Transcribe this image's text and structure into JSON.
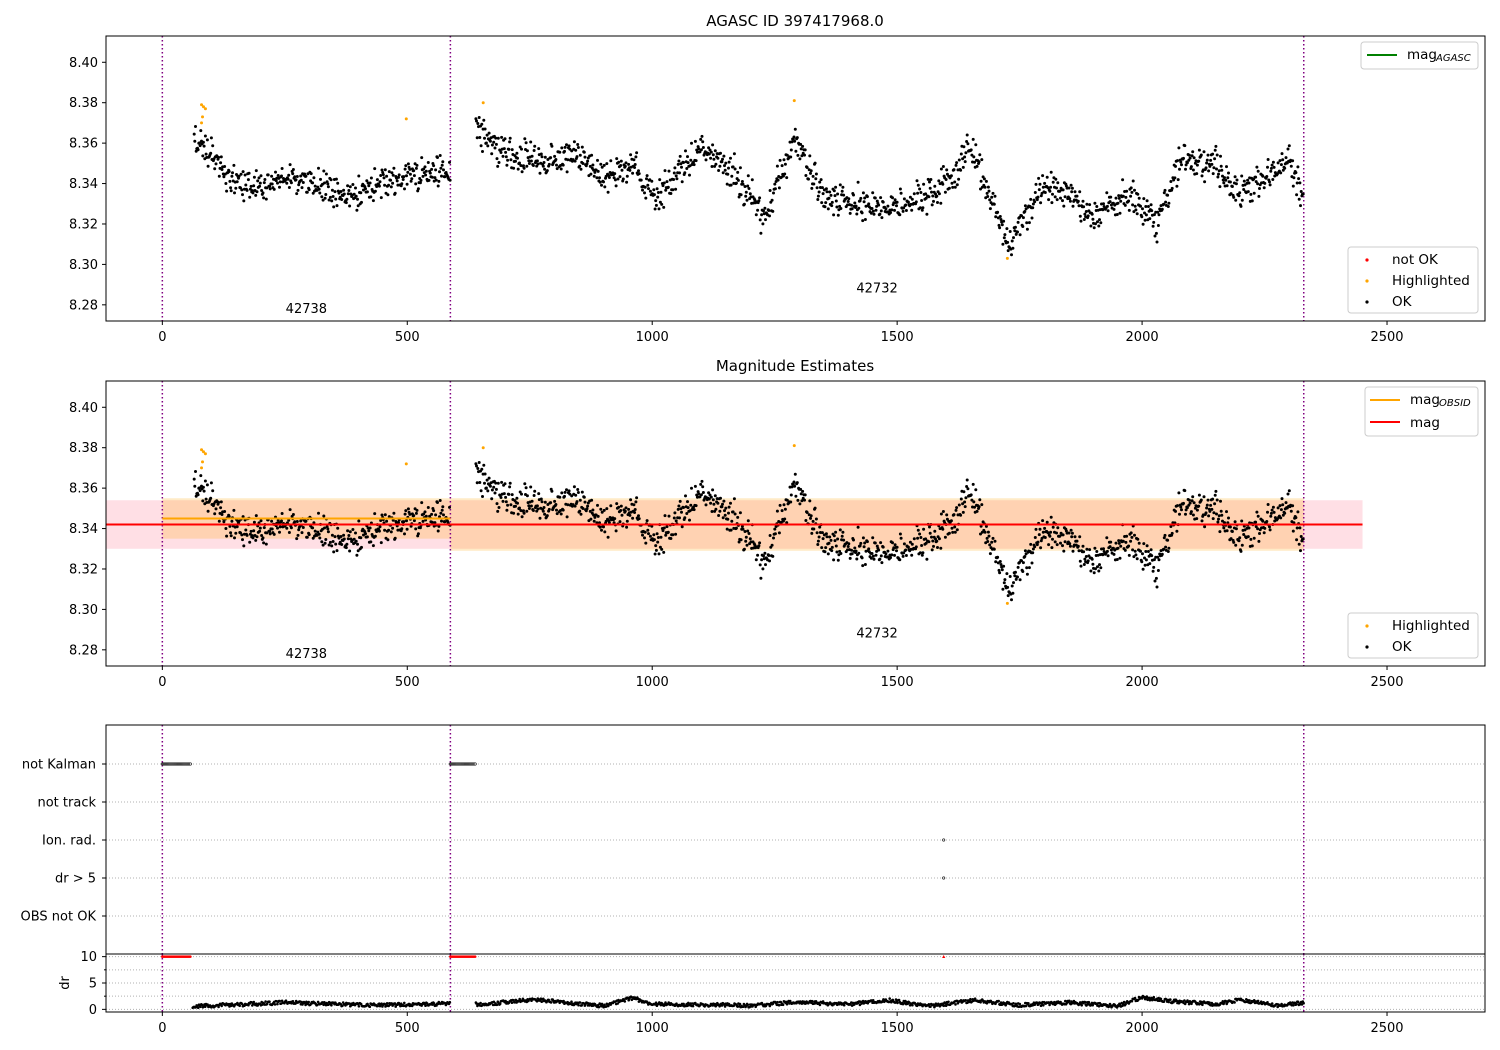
{
  "chart_data": [
    {
      "type": "scatter",
      "title": "AGASC ID 397417968.0",
      "xlabel": "",
      "ylabel": "",
      "xlim": [
        -115,
        2700
      ],
      "ylim": [
        8.272,
        8.413
      ],
      "x_ticks": [
        "0",
        "500",
        "1000",
        "1500",
        "2000",
        "2500"
      ],
      "y_ticks": [
        "8.28",
        "8.30",
        "8.32",
        "8.34",
        "8.36",
        "8.38",
        "8.40"
      ],
      "y_tick_values": [
        8.28,
        8.3,
        8.32,
        8.34,
        8.36,
        8.38,
        8.4
      ],
      "obs_boundaries": [
        0,
        588,
        2330
      ],
      "obsids": [
        {
          "label": "42738",
          "x": 294,
          "y": 8.278
        },
        {
          "label": "42732",
          "x": 1459,
          "y": 8.288
        }
      ],
      "legend_lines": [
        {
          "name": "mag",
          "sub": "AGASC",
          "color": "#008000"
        }
      ],
      "legend_points": [
        {
          "name": "not OK",
          "color": "#ff0000"
        },
        {
          "name": "Highlighted",
          "color": "#ffa500"
        },
        {
          "name": "OK",
          "color": "#000000"
        }
      ],
      "highlighted_points": [
        [
          80,
          8.379
        ],
        [
          84,
          8.378
        ],
        [
          88,
          8.377
        ],
        [
          82,
          8.373
        ],
        [
          80,
          8.37
        ],
        [
          498,
          8.372
        ],
        [
          655,
          8.38
        ],
        [
          1290,
          8.381
        ],
        [
          1725,
          8.303
        ]
      ],
      "ok_series_profile": [
        [
          65,
          8.362
        ],
        [
          100,
          8.355
        ],
        [
          130,
          8.343
        ],
        [
          200,
          8.338
        ],
        [
          260,
          8.344
        ],
        [
          320,
          8.34
        ],
        [
          380,
          8.333
        ],
        [
          430,
          8.338
        ],
        [
          500,
          8.345
        ],
        [
          588,
          8.345
        ],
        [
          640,
          8.368
        ],
        [
          700,
          8.354
        ],
        [
          780,
          8.351
        ],
        [
          840,
          8.356
        ],
        [
          900,
          8.342
        ],
        [
          960,
          8.349
        ],
        [
          1010,
          8.333
        ],
        [
          1100,
          8.357
        ],
        [
          1170,
          8.345
        ],
        [
          1230,
          8.322
        ],
        [
          1290,
          8.362
        ],
        [
          1350,
          8.333
        ],
        [
          1450,
          8.329
        ],
        [
          1520,
          8.329
        ],
        [
          1600,
          8.339
        ],
        [
          1650,
          8.358
        ],
        [
          1700,
          8.327
        ],
        [
          1730,
          8.31
        ],
        [
          1800,
          8.34
        ],
        [
          1850,
          8.335
        ],
        [
          1900,
          8.324
        ],
        [
          1980,
          8.334
        ],
        [
          2030,
          8.32
        ],
        [
          2080,
          8.352
        ],
        [
          2150,
          8.35
        ],
        [
          2200,
          8.335
        ],
        [
          2250,
          8.343
        ],
        [
          2300,
          8.351
        ],
        [
          2330,
          8.332
        ]
      ]
    },
    {
      "type": "scatter",
      "title": "Magnitude Estimates",
      "xlabel": "",
      "ylabel": "",
      "xlim": [
        -115,
        2700
      ],
      "ylim": [
        8.272,
        8.413
      ],
      "x_ticks": [
        "0",
        "500",
        "1000",
        "1500",
        "2000",
        "2500"
      ],
      "y_ticks": [
        "8.28",
        "8.30",
        "8.32",
        "8.34",
        "8.36",
        "8.38",
        "8.40"
      ],
      "y_tick_values": [
        8.28,
        8.3,
        8.32,
        8.34,
        8.36,
        8.38,
        8.4
      ],
      "obs_boundaries": [
        0,
        588,
        2330
      ],
      "obsids": [
        {
          "label": "42738",
          "x": 294,
          "y": 8.278
        },
        {
          "label": "42732",
          "x": 1459,
          "y": 8.288
        }
      ],
      "legend_lines": [
        {
          "name": "mag",
          "sub": "OBSID",
          "color": "#ffa500"
        },
        {
          "name": "mag",
          "sub": "",
          "color": "#ff0000"
        }
      ],
      "legend_points": [
        {
          "name": "Highlighted",
          "color": "#ffa500"
        },
        {
          "name": "OK",
          "color": "#000000"
        }
      ],
      "mag_line": {
        "value": 8.342,
        "x": [
          -115,
          2450
        ],
        "band": [
          8.33,
          8.354
        ],
        "band_color": "#ffc0cb"
      },
      "mag_obsid": [
        {
          "x": [
            0,
            588
          ],
          "value": 8.345,
          "band": [
            8.335,
            8.355
          ]
        },
        {
          "x": [
            588,
            2330
          ],
          "value": 8.342,
          "band": [
            8.329,
            8.355
          ]
        }
      ],
      "highlighted_points": [
        [
          80,
          8.379
        ],
        [
          84,
          8.378
        ],
        [
          88,
          8.377
        ],
        [
          82,
          8.373
        ],
        [
          80,
          8.37
        ],
        [
          498,
          8.372
        ],
        [
          655,
          8.38
        ],
        [
          1290,
          8.381
        ],
        [
          1725,
          8.303
        ]
      ],
      "ok_series_profile": [
        [
          65,
          8.362
        ],
        [
          100,
          8.355
        ],
        [
          130,
          8.343
        ],
        [
          200,
          8.338
        ],
        [
          260,
          8.344
        ],
        [
          320,
          8.34
        ],
        [
          380,
          8.333
        ],
        [
          430,
          8.338
        ],
        [
          500,
          8.345
        ],
        [
          588,
          8.345
        ],
        [
          640,
          8.368
        ],
        [
          700,
          8.354
        ],
        [
          780,
          8.351
        ],
        [
          840,
          8.356
        ],
        [
          900,
          8.342
        ],
        [
          960,
          8.349
        ],
        [
          1010,
          8.333
        ],
        [
          1100,
          8.357
        ],
        [
          1170,
          8.345
        ],
        [
          1230,
          8.322
        ],
        [
          1290,
          8.362
        ],
        [
          1350,
          8.333
        ],
        [
          1450,
          8.329
        ],
        [
          1520,
          8.329
        ],
        [
          1600,
          8.339
        ],
        [
          1650,
          8.358
        ],
        [
          1700,
          8.327
        ],
        [
          1730,
          8.31
        ],
        [
          1800,
          8.34
        ],
        [
          1850,
          8.335
        ],
        [
          1900,
          8.324
        ],
        [
          1980,
          8.334
        ],
        [
          2030,
          8.32
        ],
        [
          2080,
          8.352
        ],
        [
          2150,
          8.35
        ],
        [
          2200,
          8.335
        ],
        [
          2250,
          8.343
        ],
        [
          2300,
          8.351
        ],
        [
          2330,
          8.332
        ]
      ]
    },
    {
      "type": "scatter",
      "title": "",
      "xlabel": "",
      "ylabel": "",
      "xlim": [
        -115,
        2700
      ],
      "categories": [
        "not Kalman",
        "not track",
        "Ion. rad.",
        "dr > 5",
        "OBS not OK"
      ],
      "obs_boundaries": [
        0,
        588,
        2330
      ],
      "flags": [
        {
          "category": "not Kalman",
          "ranges": [
            [
              0,
              58
            ],
            [
              588,
              640
            ]
          ]
        },
        {
          "category": "Ion. rad.",
          "points": [
            1595
          ]
        },
        {
          "category": "dr > 5",
          "points": [
            1595
          ]
        }
      ]
    },
    {
      "type": "scatter",
      "title": "",
      "xlabel": "",
      "ylabel": "dr",
      "xlim": [
        -115,
        2700
      ],
      "ylim": [
        -0.5,
        10.5
      ],
      "x_ticks": [
        "0",
        "500",
        "1000",
        "1500",
        "2000",
        "2500"
      ],
      "y_ticks": [
        "0",
        "5",
        "10"
      ],
      "y_tick_values": [
        0,
        5,
        10
      ],
      "obs_boundaries": [
        0,
        588,
        2330
      ],
      "clipped_ranges": [
        [
          0,
          58
        ],
        [
          588,
          640
        ]
      ],
      "clipped_points": [
        1595
      ],
      "clip_value": 10,
      "dr_profile": [
        [
          60,
          0.6
        ],
        [
          150,
          0.9
        ],
        [
          250,
          1.3
        ],
        [
          350,
          1.0
        ],
        [
          450,
          0.8
        ],
        [
          588,
          1.1
        ],
        [
          650,
          0.9
        ],
        [
          760,
          1.9
        ],
        [
          800,
          1.5
        ],
        [
          900,
          0.7
        ],
        [
          960,
          2.2
        ],
        [
          1000,
          1.0
        ],
        [
          1100,
          0.9
        ],
        [
          1200,
          0.7
        ],
        [
          1300,
          1.4
        ],
        [
          1400,
          0.9
        ],
        [
          1480,
          1.8
        ],
        [
          1560,
          0.6
        ],
        [
          1660,
          1.7
        ],
        [
          1750,
          0.8
        ],
        [
          1850,
          1.3
        ],
        [
          1950,
          0.6
        ],
        [
          2000,
          2.3
        ],
        [
          2050,
          1.6
        ],
        [
          2150,
          1.0
        ],
        [
          2200,
          1.8
        ],
        [
          2280,
          0.7
        ],
        [
          2330,
          1.3
        ]
      ]
    }
  ]
}
